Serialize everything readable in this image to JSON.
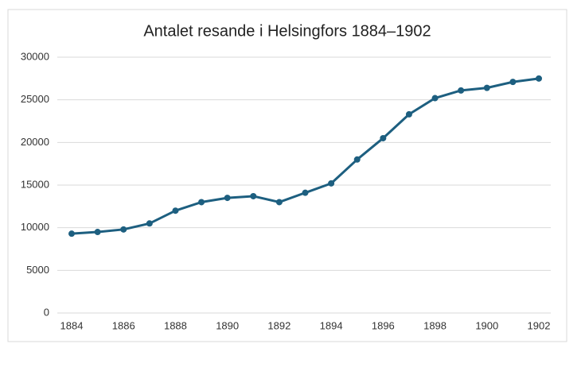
{
  "chart_data": {
    "type": "line",
    "title": "Antalet resande i Helsingfors 1884–1902",
    "x": [
      1884,
      1885,
      1886,
      1887,
      1888,
      1889,
      1890,
      1891,
      1892,
      1893,
      1894,
      1895,
      1896,
      1897,
      1898,
      1899,
      1900,
      1901,
      1902
    ],
    "series": [
      {
        "color": "#1d5f80",
        "values": [
          9300,
          9500,
          9800,
          10500,
          12000,
          13000,
          13500,
          13700,
          13000,
          14100,
          15200,
          18000,
          20500,
          23300,
          25200,
          26100,
          26400,
          27100,
          27500
        ]
      }
    ],
    "xlim": [
      1884,
      1902
    ],
    "xticks": [
      1884,
      1886,
      1888,
      1890,
      1892,
      1894,
      1896,
      1898,
      1900,
      1902
    ],
    "ylim": [
      0,
      30000
    ],
    "yticks": [
      0,
      5000,
      10000,
      15000,
      20000,
      25000,
      30000
    ],
    "grid": true
  }
}
